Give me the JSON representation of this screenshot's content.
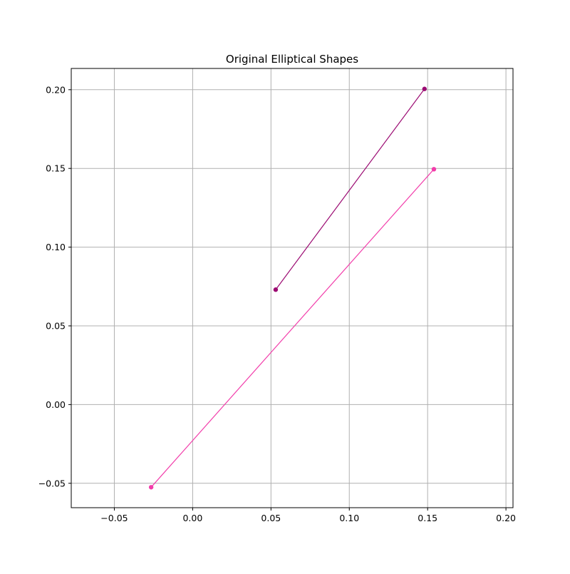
{
  "chart_data": {
    "type": "line",
    "title": "Original Elliptical Shapes",
    "xlabel": "",
    "ylabel": "",
    "xlim": [
      -0.0775,
      0.2045
    ],
    "ylim": [
      -0.0655,
      0.2135
    ],
    "x_ticks": [
      -0.05,
      0.0,
      0.05,
      0.1,
      0.15,
      0.2
    ],
    "x_tick_labels": [
      "−0.05",
      "0.00",
      "0.05",
      "0.10",
      "0.15",
      "0.20"
    ],
    "y_ticks": [
      -0.05,
      0.0,
      0.05,
      0.1,
      0.15,
      0.2
    ],
    "y_tick_labels": [
      "−0.05",
      "0.00",
      "0.05",
      "0.10",
      "0.15",
      "0.20"
    ],
    "grid": true,
    "series": [
      {
        "color": "#9b0a72",
        "points": [
          {
            "x": 0.053,
            "y": 0.073
          },
          {
            "x": 0.148,
            "y": 0.2005
          }
        ]
      },
      {
        "color": "#f23caa",
        "points": [
          {
            "x": -0.0265,
            "y": -0.0525
          },
          {
            "x": 0.154,
            "y": 0.1495
          }
        ]
      }
    ]
  }
}
